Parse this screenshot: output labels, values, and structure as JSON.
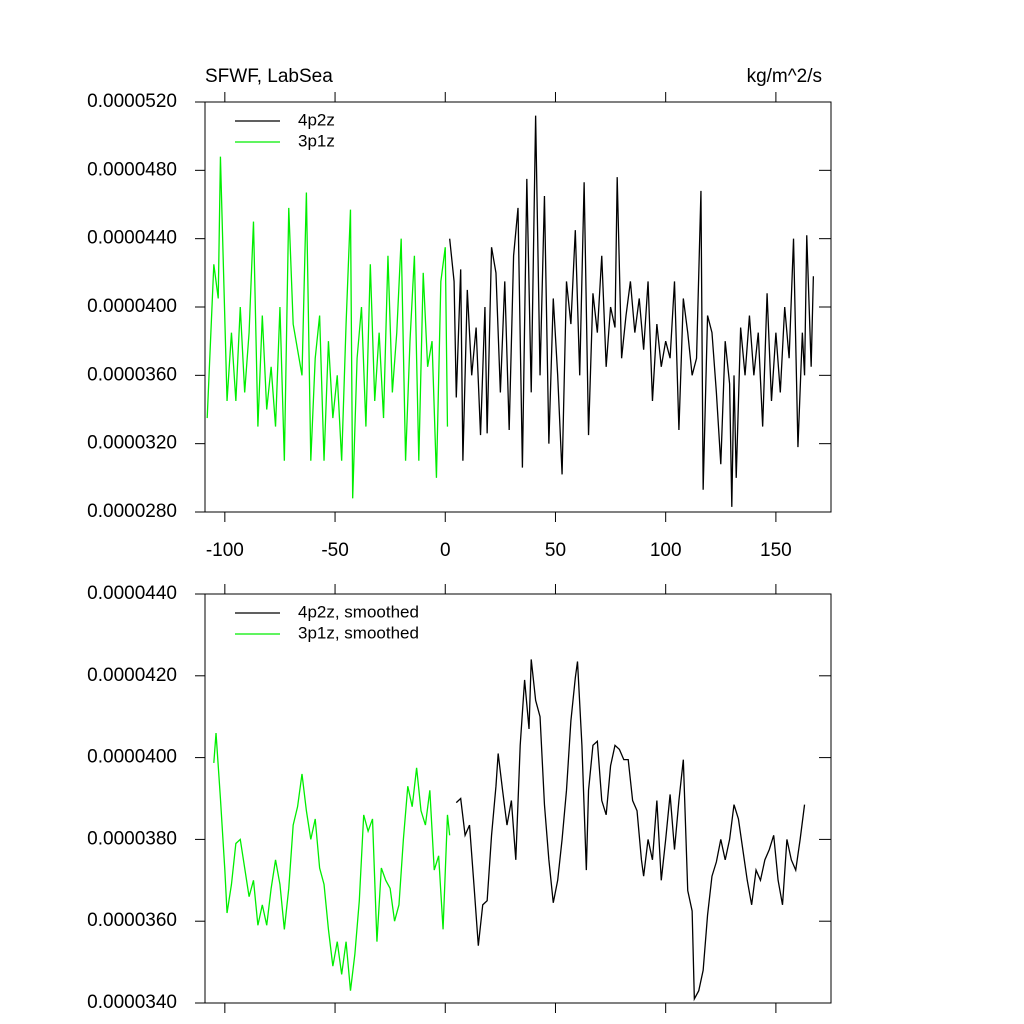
{
  "chart_data": [
    {
      "type": "line",
      "title": "SFWF, LabSea",
      "right_title": "kg/m^2/s",
      "xlim": [
        -109,
        175
      ],
      "xticks": [
        -100,
        -50,
        0,
        50,
        100,
        150
      ],
      "xtick_labels": true,
      "ylim": [
        2.8e-05,
        5.2e-05
      ],
      "yticks": [
        {
          "value": 2.8e-05,
          "label": "0.0000280"
        },
        {
          "value": 3.2e-05,
          "label": "0.0000320"
        },
        {
          "value": 3.6e-05,
          "label": "0.0000360"
        },
        {
          "value": 4e-05,
          "label": "0.0000400"
        },
        {
          "value": 4.4e-05,
          "label": "0.0000440"
        },
        {
          "value": 4.8e-05,
          "label": "0.0000480"
        },
        {
          "value": 5.2e-05,
          "label": "0.0000520"
        }
      ],
      "legend": "upper left",
      "series": [
        {
          "name": "4p2z",
          "color": "#000000",
          "x": [
            2,
            4,
            5,
            7,
            8,
            10,
            12,
            14,
            16,
            18,
            19,
            21,
            23,
            25,
            27,
            29,
            31,
            33,
            35,
            37,
            39,
            41,
            43,
            45,
            47,
            49,
            51,
            53,
            55,
            57,
            59,
            61,
            63,
            65,
            67,
            69,
            71,
            73,
            75,
            77,
            78,
            80,
            82,
            84,
            86,
            88,
            90,
            92,
            94,
            96,
            98,
            100,
            102,
            104,
            106,
            108,
            110,
            112,
            114,
            116,
            117,
            119,
            121,
            123,
            125,
            127,
            129,
            130,
            131,
            132,
            134,
            136,
            138,
            140,
            142,
            144,
            146,
            148,
            150,
            152,
            154,
            156,
            158,
            160,
            162,
            163,
            164,
            166,
            167
          ],
          "values": [
            4.4e-05,
            4.15e-05,
            3.47e-05,
            4.22e-05,
            3.1e-05,
            4.1e-05,
            3.6e-05,
            3.88e-05,
            3.25e-05,
            4e-05,
            3.26e-05,
            4.35e-05,
            4.2e-05,
            3.5e-05,
            4.15e-05,
            3.28e-05,
            4.3e-05,
            4.58e-05,
            3.06e-05,
            4.75e-05,
            3.5e-05,
            5.12e-05,
            3.6e-05,
            4.65e-05,
            3.2e-05,
            4.05e-05,
            3.6e-05,
            3.02e-05,
            4.15e-05,
            3.9e-05,
            4.45e-05,
            3.6e-05,
            4.73e-05,
            3.25e-05,
            4.08e-05,
            3.85e-05,
            4.3e-05,
            3.65e-05,
            4e-05,
            3.88e-05,
            4.76e-05,
            3.7e-05,
            3.95e-05,
            4.15e-05,
            3.85e-05,
            4.05e-05,
            3.75e-05,
            4.15e-05,
            3.45e-05,
            3.9e-05,
            3.65e-05,
            3.8e-05,
            3.7e-05,
            4.15e-05,
            3.28e-05,
            4.05e-05,
            3.85e-05,
            3.6e-05,
            3.7e-05,
            4.68e-05,
            2.93e-05,
            3.95e-05,
            3.85e-05,
            3.5e-05,
            3.08e-05,
            3.8e-05,
            3.55e-05,
            2.83e-05,
            3.6e-05,
            3e-05,
            3.88e-05,
            3.6e-05,
            3.95e-05,
            3.6e-05,
            3.85e-05,
            3.3e-05,
            4.08e-05,
            3.45e-05,
            3.85e-05,
            3.5e-05,
            4e-05,
            3.7e-05,
            4.4e-05,
            3.18e-05,
            3.85e-05,
            3.6e-05,
            4.42e-05,
            3.65e-05,
            4.18e-05
          ]
        },
        {
          "name": "3p1z",
          "color": "#00ee00",
          "x": [
            -108,
            -105,
            -103,
            -102,
            -99,
            -97,
            -95,
            -93,
            -91,
            -89,
            -87,
            -85,
            -83,
            -81,
            -79,
            -77,
            -75,
            -73,
            -71,
            -69,
            -67,
            -65,
            -63,
            -61,
            -59,
            -57,
            -55,
            -53,
            -51,
            -49,
            -47,
            -45,
            -43,
            -42,
            -40,
            -38,
            -36,
            -34,
            -32,
            -30,
            -28,
            -26,
            -24,
            -22,
            -20,
            -18,
            -16,
            -14,
            -12,
            -10,
            -8,
            -6,
            -4,
            -2,
            0,
            1
          ],
          "values": [
            3.35e-05,
            4.25e-05,
            4.05e-05,
            4.88e-05,
            3.45e-05,
            3.85e-05,
            3.45e-05,
            4e-05,
            3.5e-05,
            3.85e-05,
            4.5e-05,
            3.3e-05,
            3.95e-05,
            3.4e-05,
            3.65e-05,
            3.3e-05,
            4e-05,
            3.1e-05,
            4.58e-05,
            3.9e-05,
            3.75e-05,
            3.6e-05,
            4.67e-05,
            3.1e-05,
            3.7e-05,
            3.95e-05,
            3.1e-05,
            3.8e-05,
            3.35e-05,
            3.6e-05,
            3.1e-05,
            3.9e-05,
            4.57e-05,
            2.88e-05,
            3.7e-05,
            4e-05,
            3.3e-05,
            4.25e-05,
            3.45e-05,
            3.85e-05,
            3.35e-05,
            4.3e-05,
            3.5e-05,
            3.85e-05,
            4.4e-05,
            3.1e-05,
            3.8e-05,
            4.3e-05,
            3.1e-05,
            4.2e-05,
            3.65e-05,
            3.8e-05,
            3e-05,
            4.15e-05,
            4.35e-05,
            3.3e-05
          ]
        }
      ]
    },
    {
      "type": "line",
      "xlim": [
        -109,
        175
      ],
      "xticks": [
        -100,
        -50,
        0,
        50,
        100,
        150
      ],
      "xtick_labels": false,
      "ylim": [
        3.4e-05,
        4.4e-05
      ],
      "yticks": [
        {
          "value": 3.4e-05,
          "label": "0.0000340"
        },
        {
          "value": 3.6e-05,
          "label": "0.0000360"
        },
        {
          "value": 3.8e-05,
          "label": "0.0000380"
        },
        {
          "value": 4e-05,
          "label": "0.0000400"
        },
        {
          "value": 4.2e-05,
          "label": "0.0000420"
        },
        {
          "value": 4.4e-05,
          "label": "0.0000440"
        }
      ],
      "legend": "upper left",
      "series": [
        {
          "name": "4p2z, smoothed",
          "color": "#000000",
          "x": [
            5,
            7,
            9,
            11,
            13,
            15,
            17,
            19,
            21,
            23,
            24,
            26,
            28,
            30,
            32,
            34,
            36,
            38,
            39,
            41,
            43,
            45,
            47,
            49,
            51,
            53,
            55,
            57,
            59,
            60,
            62,
            64,
            65,
            67,
            69,
            71,
            73,
            75,
            77,
            79,
            81,
            83,
            85,
            87,
            89,
            90,
            92,
            94,
            96,
            98,
            100,
            102,
            104,
            106,
            108,
            110,
            112,
            113,
            115,
            117,
            119,
            121,
            123,
            125,
            127,
            129,
            131,
            133,
            135,
            137,
            139,
            141,
            143,
            145,
            147,
            149,
            151,
            153,
            155,
            157,
            159,
            161,
            163
          ],
          "values": [
            3.89e-05,
            3.9e-05,
            3.81e-05,
            3.835e-05,
            3.69e-05,
            3.54e-05,
            3.64e-05,
            3.65e-05,
            3.81e-05,
            3.93e-05,
            4.01e-05,
            3.92e-05,
            3.835e-05,
            3.895e-05,
            3.75e-05,
            4.03e-05,
            4.19e-05,
            4.07e-05,
            4.24e-05,
            4.14e-05,
            4.1e-05,
            3.885e-05,
            3.75e-05,
            3.645e-05,
            3.7e-05,
            3.8e-05,
            3.92e-05,
            4.09e-05,
            4.195e-05,
            4.235e-05,
            4.03e-05,
            3.725e-05,
            3.92e-05,
            4.03e-05,
            4.04e-05,
            3.895e-05,
            3.86e-05,
            3.98e-05,
            4.03e-05,
            4.02e-05,
            3.995e-05,
            3.995e-05,
            3.895e-05,
            3.87e-05,
            3.75e-05,
            3.71e-05,
            3.8e-05,
            3.75e-05,
            3.895e-05,
            3.7e-05,
            3.8e-05,
            3.91e-05,
            3.775e-05,
            3.895e-05,
            3.995e-05,
            3.675e-05,
            3.625e-05,
            3.41e-05,
            3.43e-05,
            3.48e-05,
            3.615e-05,
            3.71e-05,
            3.745e-05,
            3.8e-05,
            3.75e-05,
            3.8e-05,
            3.885e-05,
            3.85e-05,
            3.775e-05,
            3.7e-05,
            3.64e-05,
            3.725e-05,
            3.7e-05,
            3.75e-05,
            3.775e-05,
            3.81e-05,
            3.7e-05,
            3.64e-05,
            3.8e-05,
            3.75e-05,
            3.725e-05,
            3.8e-05,
            3.885e-05
          ]
        },
        {
          "name": "3p1z, smoothed",
          "color": "#00ee00",
          "x": [
            -105,
            -104,
            -102,
            -100,
            -99,
            -97,
            -95,
            -93,
            -91,
            -89,
            -87,
            -85,
            -83,
            -81,
            -79,
            -77,
            -75,
            -73,
            -71,
            -69,
            -67,
            -65,
            -63,
            -61,
            -59,
            -57,
            -55,
            -53,
            -51,
            -49,
            -47,
            -45,
            -43,
            -41,
            -39,
            -37,
            -35,
            -33,
            -31,
            -29,
            -27,
            -25,
            -23,
            -21,
            -19,
            -17,
            -15,
            -13,
            -11,
            -9,
            -7,
            -5,
            -3,
            -1,
            1,
            2
          ],
          "values": [
            3.987e-05,
            4.06e-05,
            3.9e-05,
            3.725e-05,
            3.62e-05,
            3.69e-05,
            3.79e-05,
            3.8e-05,
            3.73e-05,
            3.66e-05,
            3.7e-05,
            3.59e-05,
            3.64e-05,
            3.59e-05,
            3.68e-05,
            3.75e-05,
            3.69e-05,
            3.58e-05,
            3.68e-05,
            3.835e-05,
            3.88e-05,
            3.96e-05,
            3.87e-05,
            3.8e-05,
            3.85e-05,
            3.73e-05,
            3.69e-05,
            3.58e-05,
            3.49e-05,
            3.55e-05,
            3.47e-05,
            3.55e-05,
            3.43e-05,
            3.52e-05,
            3.65e-05,
            3.86e-05,
            3.82e-05,
            3.85e-05,
            3.55e-05,
            3.73e-05,
            3.7e-05,
            3.68e-05,
            3.6e-05,
            3.64e-05,
            3.8e-05,
            3.93e-05,
            3.88e-05,
            3.975e-05,
            3.87e-05,
            3.835e-05,
            3.92e-05,
            3.725e-05,
            3.76e-05,
            3.58e-05,
            3.86e-05,
            3.81e-05
          ]
        }
      ]
    }
  ]
}
